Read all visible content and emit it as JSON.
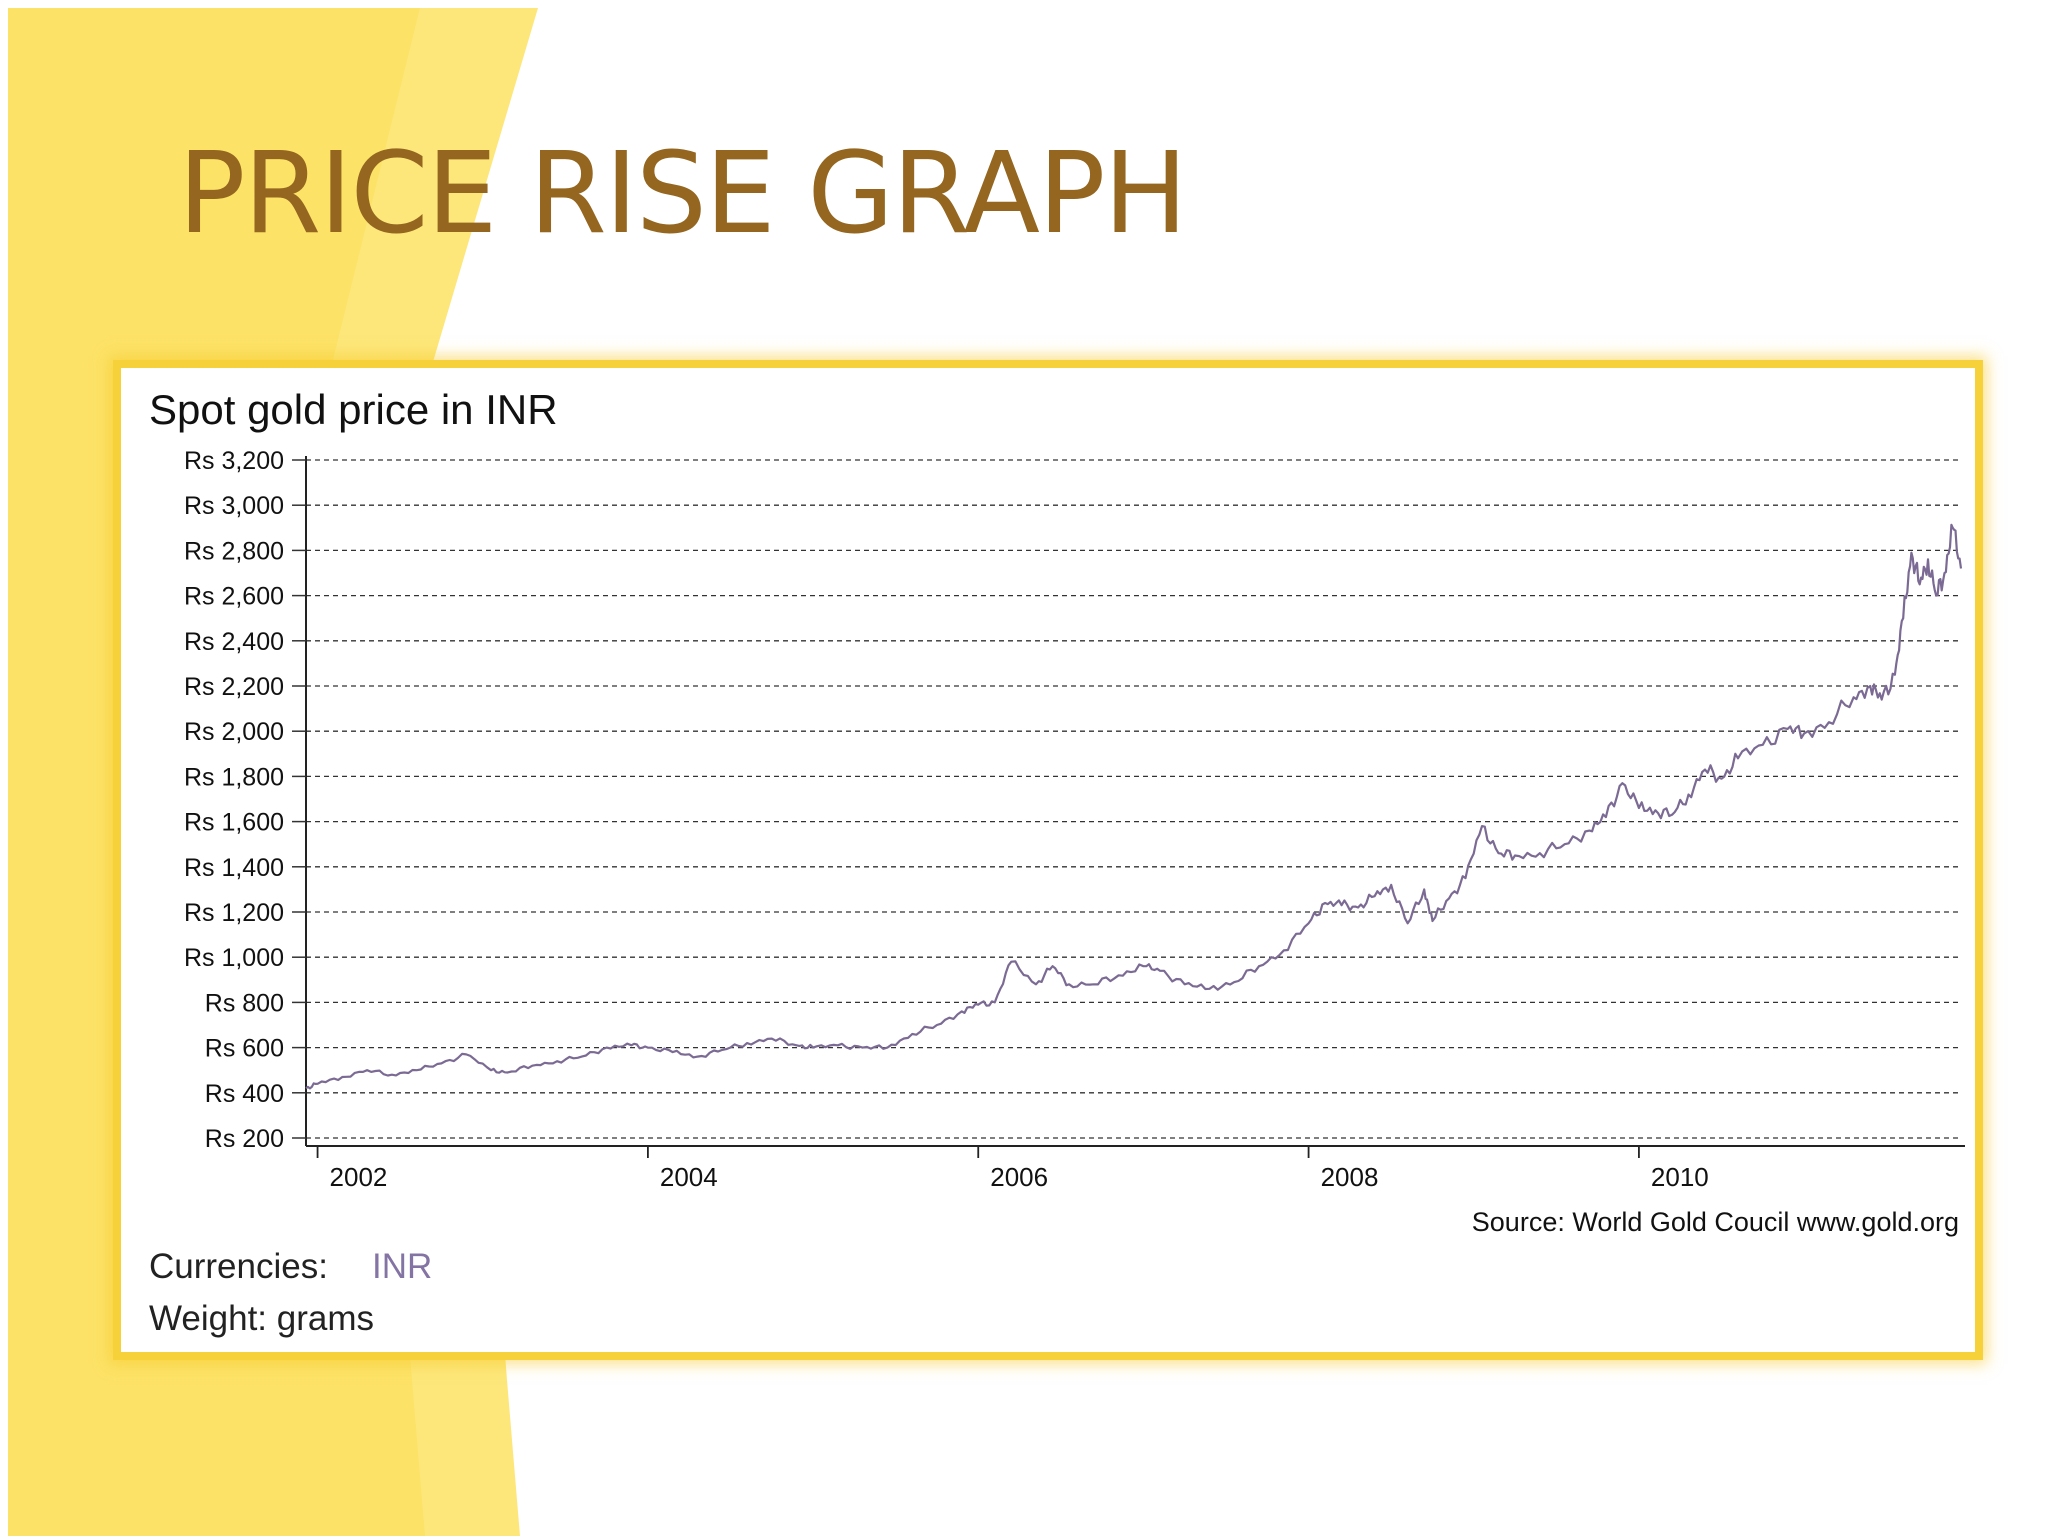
{
  "slide": {
    "title": "PRICE RISE GRAPH",
    "colors": {
      "title": "#94661f",
      "band_yellow": "#fde77a",
      "frame_border": "#f7d13a"
    }
  },
  "chart_data": {
    "type": "line",
    "title": "Spot gold price in INR",
    "xlabel": "",
    "ylabel": "",
    "ylim": [
      200,
      3200
    ],
    "xlim": [
      2001.93,
      2011.95
    ],
    "yticks": [
      200,
      400,
      600,
      800,
      1000,
      1200,
      1400,
      1600,
      1800,
      2000,
      2200,
      2400,
      2600,
      2800,
      3000,
      3200
    ],
    "ytick_labels": [
      "Rs 200",
      "Rs 400",
      "Rs 600",
      "Rs 800",
      "Rs 1,000",
      "Rs 1,200",
      "Rs 1,400",
      "Rs 1,600",
      "Rs 1,800",
      "Rs 2,000",
      "Rs 2,200",
      "Rs 2,400",
      "Rs 2,600",
      "Rs 2,800",
      "Rs 3,000",
      "Rs 3,200"
    ],
    "xticks": [
      2002,
      2004,
      2006,
      2008,
      2010
    ],
    "xtick_labels": [
      "2002",
      "2004",
      "2006",
      "2008",
      "2010"
    ],
    "grid": "horizontal-dashed",
    "line_color": "#7b6b94",
    "source": "Source: World Gold Coucil www.gold.org",
    "currencies_label": "Currencies:",
    "currency_value": "INR",
    "weight_label": "Weight: grams",
    "series": [
      {
        "name": "INR",
        "x": [
          2001.93,
          2002.0,
          2002.15,
          2002.3,
          2002.45,
          2002.6,
          2002.75,
          2002.9,
          2003.05,
          2003.15,
          2003.3,
          2003.45,
          2003.6,
          2003.75,
          2003.9,
          2004.0,
          2004.15,
          2004.3,
          2004.45,
          2004.6,
          2004.75,
          2004.9,
          2005.0,
          2005.15,
          2005.3,
          2005.45,
          2005.6,
          2005.75,
          2005.9,
          2006.0,
          2006.1,
          2006.2,
          2006.35,
          2006.45,
          2006.55,
          2006.7,
          2006.85,
          2007.0,
          2007.1,
          2007.25,
          2007.4,
          2007.55,
          2007.7,
          2007.85,
          2008.0,
          2008.1,
          2008.2,
          2008.3,
          2008.4,
          2008.5,
          2008.6,
          2008.7,
          2008.75,
          2008.85,
          2008.95,
          2009.05,
          2009.15,
          2009.25,
          2009.4,
          2009.55,
          2009.7,
          2009.8,
          2009.9,
          2010.0,
          2010.1,
          2010.2,
          2010.3,
          2010.4,
          2010.5,
          2010.6,
          2010.75,
          2010.9,
          2011.0,
          2011.15,
          2011.3,
          2011.4,
          2011.47,
          2011.55,
          2011.6,
          2011.65,
          2011.7,
          2011.75,
          2011.8,
          2011.85,
          2011.9,
          2011.95
        ],
        "values": [
          420,
          440,
          470,
          500,
          480,
          500,
          530,
          570,
          500,
          490,
          520,
          540,
          560,
          600,
          610,
          600,
          580,
          560,
          590,
          620,
          640,
          610,
          600,
          610,
          600,
          600,
          660,
          700,
          760,
          790,
          800,
          980,
          880,
          960,
          880,
          880,
          920,
          960,
          940,
          880,
          860,
          890,
          960,
          1030,
          1150,
          1240,
          1230,
          1220,
          1270,
          1320,
          1150,
          1300,
          1160,
          1260,
          1350,
          1580,
          1460,
          1450,
          1460,
          1500,
          1560,
          1620,
          1770,
          1660,
          1650,
          1630,
          1720,
          1830,
          1790,
          1880,
          1940,
          2010,
          1990,
          2040,
          2150,
          2200,
          2140,
          2250,
          2500,
          2790,
          2650,
          2760,
          2600,
          2700,
          2900,
          2720
        ]
      }
    ]
  }
}
